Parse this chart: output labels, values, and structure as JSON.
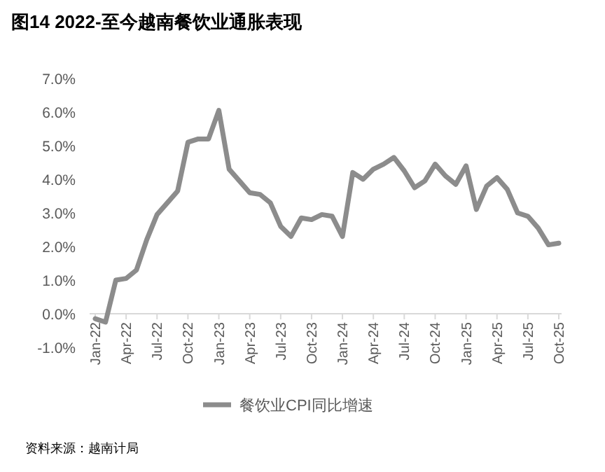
{
  "chart_data": {
    "type": "line",
    "title": "图14 2022-至今越南餐饮业通胀表现",
    "categories": [
      "Jan-22",
      null,
      null,
      "Apr-22",
      null,
      null,
      "Jul-22",
      null,
      null,
      "Oct-22",
      null,
      null,
      "Jan-23",
      null,
      null,
      "Apr-23",
      null,
      null,
      "Jul-23",
      null,
      null,
      "Oct-23",
      null,
      null,
      "Jan-24",
      null,
      null,
      "Apr-24",
      null,
      null,
      "Jul-24",
      null,
      null,
      "Oct-24",
      null,
      null,
      "Jan-25",
      null,
      null,
      "Apr-25",
      null,
      null,
      "Jul-25",
      null,
      null,
      "Oct-25"
    ],
    "series": [
      {
        "name": "餐饮业CPI同比增速",
        "color": "#8c8c8c",
        "values": [
          -0.15,
          -0.25,
          1.0,
          1.05,
          1.3,
          2.2,
          2.95,
          3.3,
          3.65,
          5.1,
          5.2,
          5.2,
          6.05,
          4.3,
          3.95,
          3.6,
          3.55,
          3.3,
          2.6,
          2.3,
          2.85,
          2.8,
          2.95,
          2.9,
          2.3,
          4.2,
          4.0,
          4.3,
          4.45,
          4.65,
          4.25,
          3.75,
          3.95,
          4.45,
          4.1,
          3.85,
          4.4,
          3.1,
          3.8,
          4.05,
          3.7,
          3.0,
          2.9,
          2.55,
          2.05,
          2.1
        ]
      }
    ],
    "ylim": [
      -1,
      7
    ],
    "yticks": [
      {
        "value": -1,
        "label": "-1.0%"
      },
      {
        "value": 0,
        "label": "0.0%"
      },
      {
        "value": 1,
        "label": "1.0%"
      },
      {
        "value": 2,
        "label": "2.0%"
      },
      {
        "value": 3,
        "label": "3.0%"
      },
      {
        "value": 4,
        "label": "4.0%"
      },
      {
        "value": 5,
        "label": "5.0%"
      },
      {
        "value": 6,
        "label": "6.0%"
      },
      {
        "value": 7,
        "label": "7.0%"
      }
    ],
    "grid": false,
    "legend": "bottom",
    "marker": "none",
    "line_style": "solid",
    "annotations": [
      "资料来源：越南计局"
    ]
  }
}
